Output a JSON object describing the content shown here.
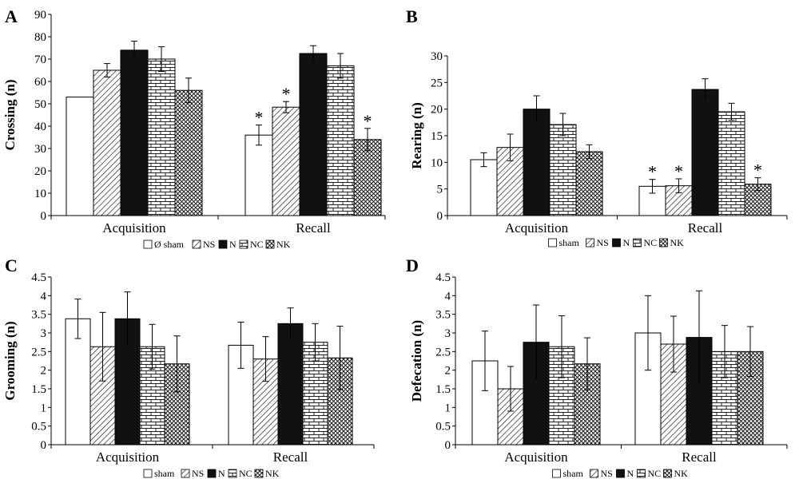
{
  "chart_data": [
    {
      "panel": "A",
      "type": "bar",
      "ylabel": "Crossing (n)",
      "ylim": [
        0,
        90
      ],
      "yticks": [
        "0",
        "10",
        "20",
        "30",
        "40",
        "50",
        "60",
        "70",
        "80",
        "90"
      ],
      "categories": [
        "Acquisition",
        "Recall"
      ],
      "series": [
        {
          "name": "sham",
          "values": [
            53,
            36
          ],
          "errors": [
            0,
            4.5
          ],
          "significant": [
            false,
            true
          ]
        },
        {
          "name": "NS",
          "values": [
            65,
            48.5
          ],
          "errors": [
            3,
            2.5
          ],
          "significant": [
            false,
            true
          ]
        },
        {
          "name": "N",
          "values": [
            74,
            72.5
          ],
          "errors": [
            4,
            3.5
          ],
          "significant": [
            false,
            false
          ]
        },
        {
          "name": "NC",
          "values": [
            70,
            67
          ],
          "errors": [
            5.5,
            5.5
          ],
          "significant": [
            false,
            false
          ]
        },
        {
          "name": "NK",
          "values": [
            56,
            34
          ],
          "errors": [
            5.5,
            5
          ],
          "significant": [
            false,
            true
          ]
        }
      ],
      "legend": [
        "Ø sham",
        "NS",
        "N",
        "NC",
        "NK"
      ]
    },
    {
      "panel": "B",
      "type": "bar",
      "ylabel": "Rearing (n)",
      "ylim": [
        0,
        30
      ],
      "yticks": [
        "0",
        "5",
        "10",
        "15",
        "20",
        "25",
        "30"
      ],
      "categories": [
        "Acquisition",
        "Recall"
      ],
      "series": [
        {
          "name": "sham",
          "values": [
            10.5,
            5.5
          ],
          "errors": [
            1.3,
            1.3
          ],
          "significant": [
            false,
            true
          ]
        },
        {
          "name": "NS",
          "values": [
            12.8,
            5.6
          ],
          "errors": [
            2.5,
            1.3
          ],
          "significant": [
            false,
            true
          ]
        },
        {
          "name": "N",
          "values": [
            20,
            23.7
          ],
          "errors": [
            2.5,
            2
          ],
          "significant": [
            false,
            false
          ]
        },
        {
          "name": "NC",
          "values": [
            17.1,
            19.5
          ],
          "errors": [
            2.1,
            1.6
          ],
          "significant": [
            false,
            false
          ]
        },
        {
          "name": "NK",
          "values": [
            12,
            5.9
          ],
          "errors": [
            1.3,
            1.2
          ],
          "significant": [
            false,
            true
          ]
        }
      ],
      "legend": [
        "sham",
        "NS",
        "N",
        "NC",
        "NK"
      ]
    },
    {
      "panel": "C",
      "type": "bar",
      "ylabel": "Grooming (n)",
      "ylim": [
        0,
        4.5
      ],
      "yticks": [
        "0",
        "0.5",
        "1",
        "1.5",
        "2",
        "2.5",
        "3",
        "3.5",
        "4",
        "4.5"
      ],
      "categories": [
        "Acquisition",
        "Recall"
      ],
      "series": [
        {
          "name": "sham",
          "values": [
            3.38,
            2.67
          ],
          "errors": [
            0.53,
            0.62
          ],
          "significant": [
            false,
            false
          ]
        },
        {
          "name": "NS",
          "values": [
            2.63,
            2.3
          ],
          "errors": [
            0.92,
            0.6
          ],
          "significant": [
            false,
            false
          ]
        },
        {
          "name": "N",
          "values": [
            3.38,
            3.25
          ],
          "errors": [
            0.72,
            0.42
          ],
          "significant": [
            false,
            false
          ]
        },
        {
          "name": "NC",
          "values": [
            2.63,
            2.75
          ],
          "errors": [
            0.6,
            0.5
          ],
          "significant": [
            false,
            false
          ]
        },
        {
          "name": "NK",
          "values": [
            2.17,
            2.33
          ],
          "errors": [
            0.75,
            0.85
          ],
          "significant": [
            false,
            false
          ]
        }
      ],
      "legend": [
        "sham",
        "NS",
        "N",
        "NC",
        "NK"
      ]
    },
    {
      "panel": "D",
      "type": "bar",
      "ylabel": "Defecation (n)",
      "ylim": [
        0,
        4.5
      ],
      "yticks": [
        "0",
        "0.5",
        "1",
        "1.5",
        "2",
        "2.5",
        "3",
        "3.5",
        "4",
        "4.5"
      ],
      "categories": [
        "Acquisition",
        "Recall"
      ],
      "series": [
        {
          "name": "sham",
          "values": [
            2.25,
            3
          ],
          "errors": [
            0.8,
            1
          ],
          "significant": [
            false,
            false
          ]
        },
        {
          "name": "NS",
          "values": [
            1.5,
            2.7
          ],
          "errors": [
            0.6,
            0.75
          ],
          "significant": [
            false,
            false
          ]
        },
        {
          "name": "N",
          "values": [
            2.75,
            2.88
          ],
          "errors": [
            1,
            1.25
          ],
          "significant": [
            false,
            false
          ]
        },
        {
          "name": "NC",
          "values": [
            2.63,
            2.5
          ],
          "errors": [
            0.83,
            0.7
          ],
          "significant": [
            false,
            false
          ]
        },
        {
          "name": "NK",
          "values": [
            2.17,
            2.5
          ],
          "errors": [
            0.7,
            0.67
          ],
          "significant": [
            false,
            false
          ]
        }
      ],
      "legend": [
        "sham",
        "NS",
        "N",
        "NC",
        "NK"
      ]
    }
  ],
  "significance_marker": "*"
}
